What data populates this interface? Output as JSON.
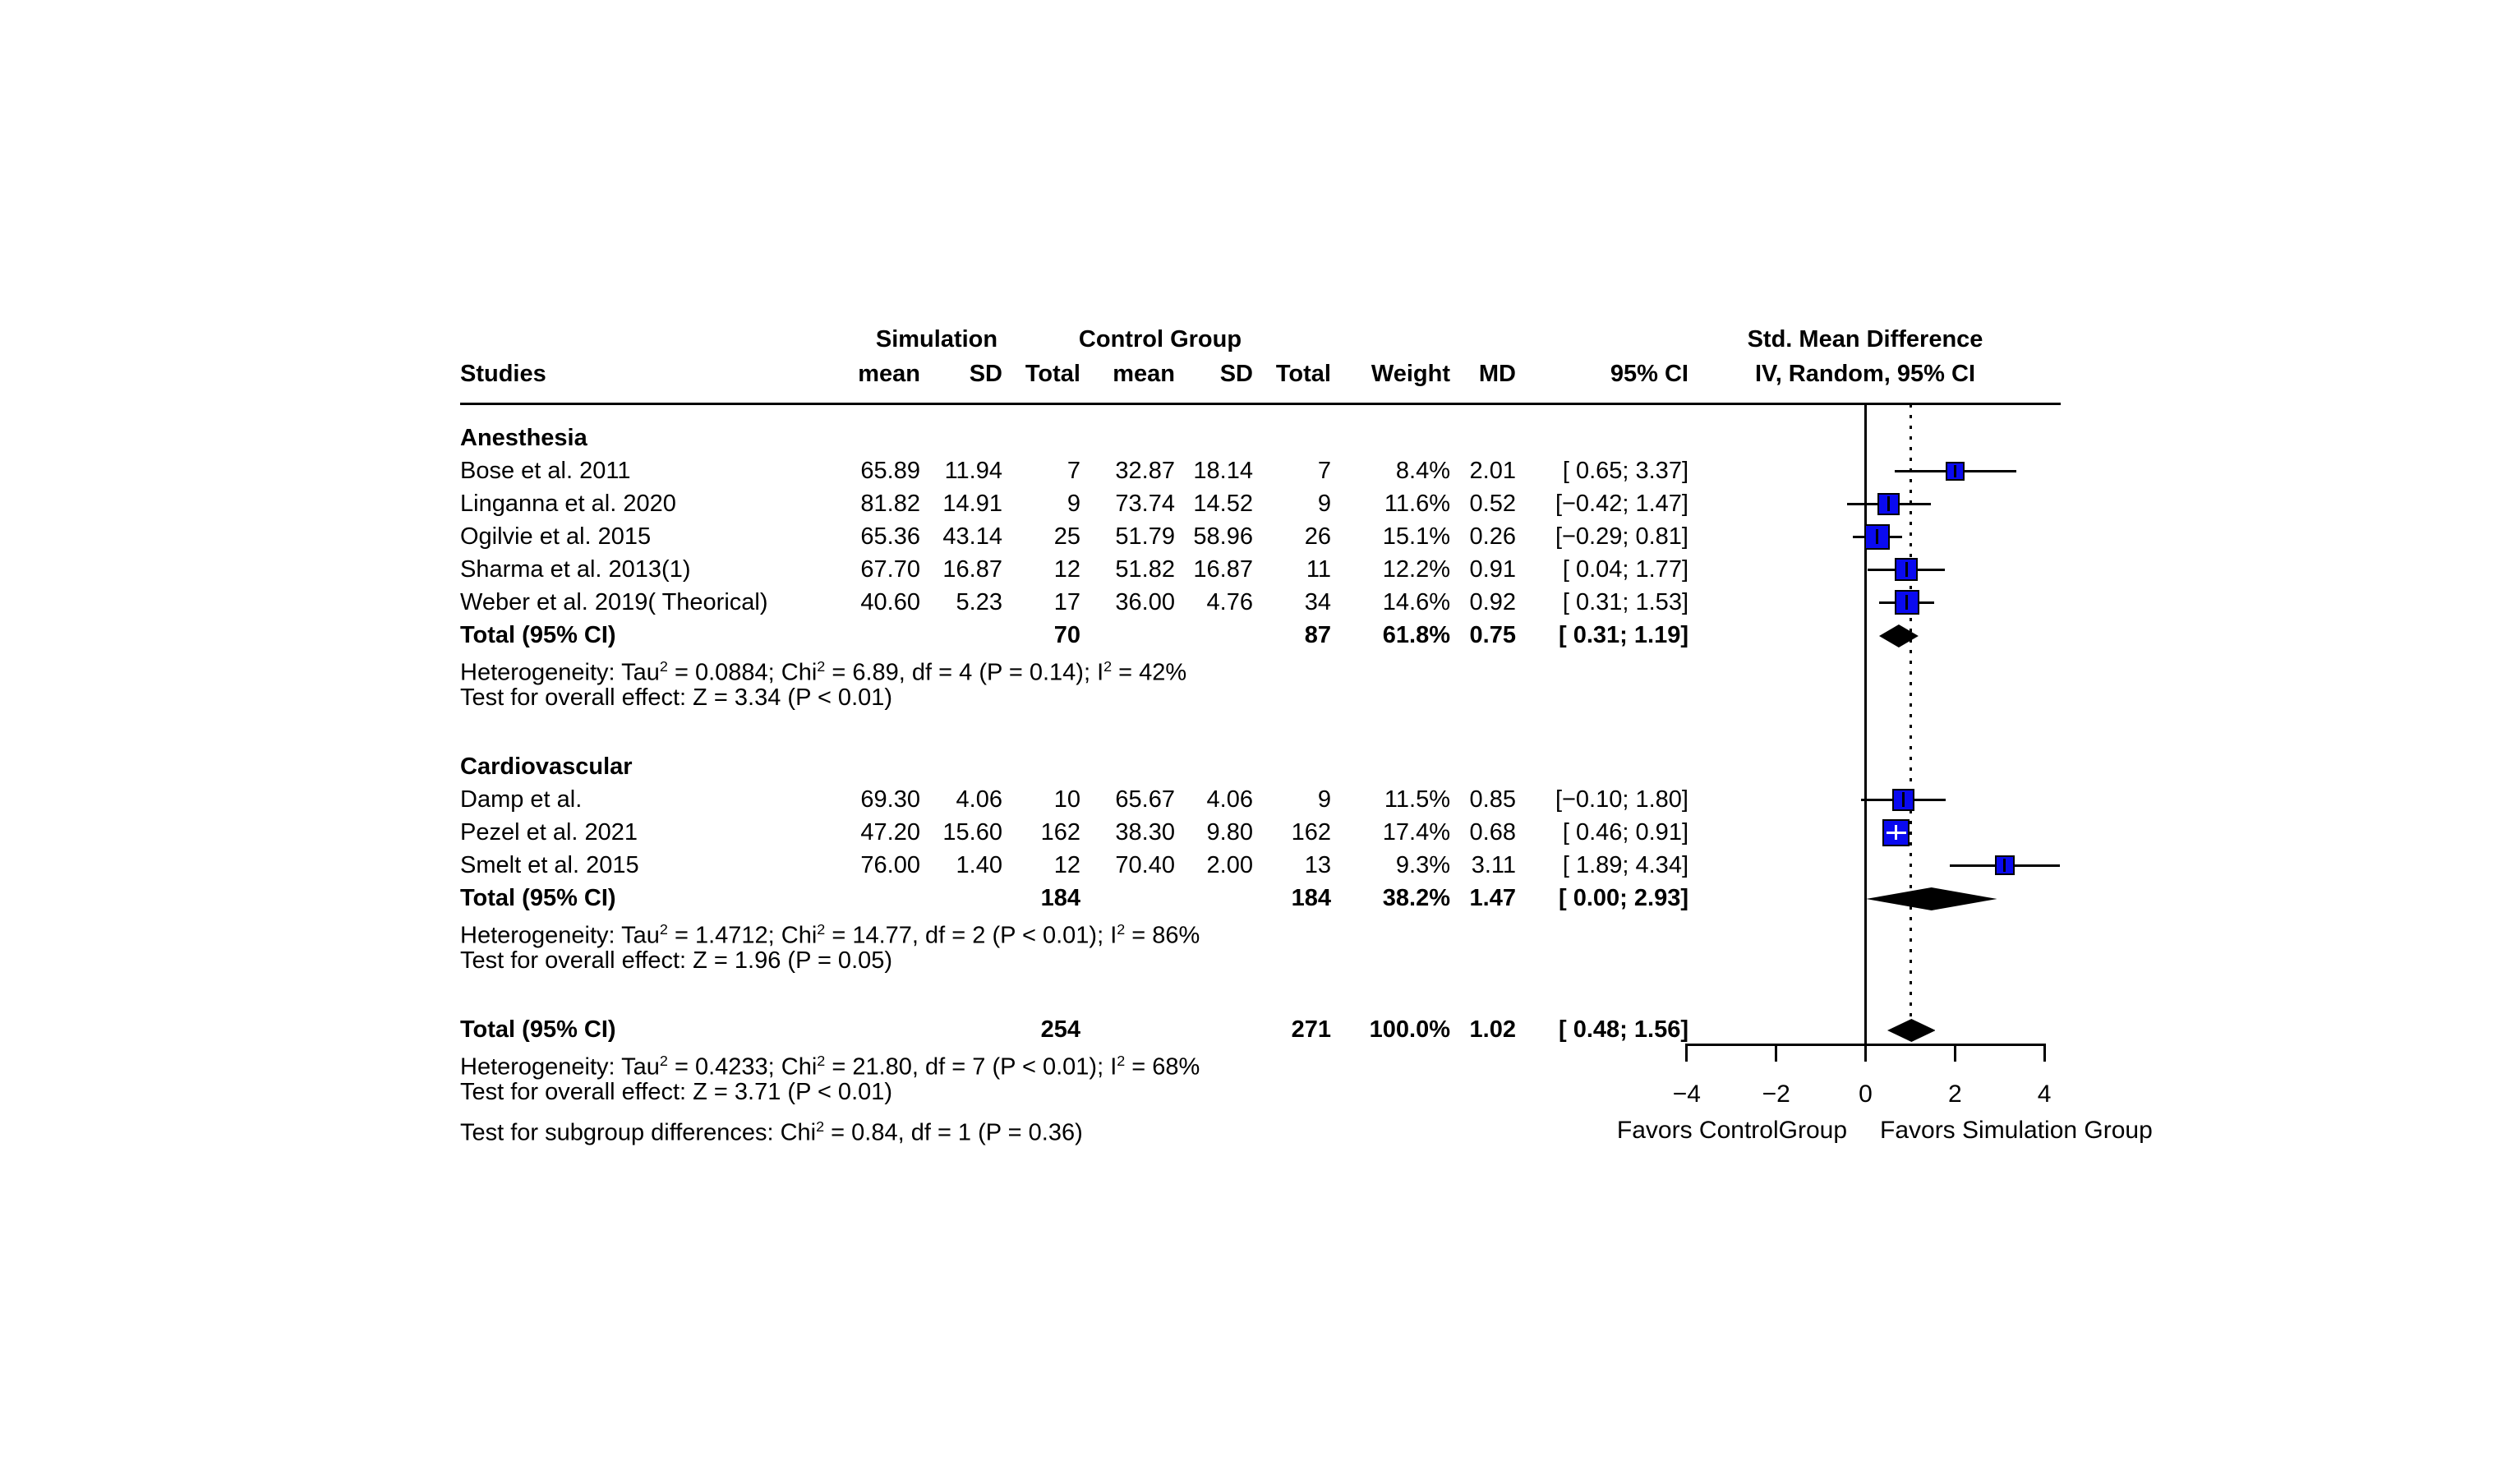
{
  "table": {
    "studies_header": "Studies",
    "group_sim": "Simulation",
    "group_ctrl": "Control Group",
    "columns": {
      "mean": "mean",
      "sd": "SD",
      "total": "Total",
      "mean2": "mean",
      "sd2": "SD",
      "total2": "Total",
      "weight": "Weight",
      "md": "MD",
      "ci": "95% CI"
    },
    "total_label": "Total (95% CI)"
  },
  "effect_col": {
    "line1": "Std. Mean Difference",
    "line2": "IV, Random, 95% CI"
  },
  "colors": {
    "square": "#0a0af0",
    "diamond": "#000000",
    "line": "#000000"
  },
  "chart_data": {
    "type": "forest",
    "x_tick_values": [
      -4,
      -2,
      0,
      2,
      4
    ],
    "x_ticks": [
      "−4",
      "−2",
      "0",
      "2",
      "4"
    ],
    "xlim": [
      -4,
      4
    ],
    "null_line": 0,
    "pooled_line": 1.02,
    "favors_left": "Favors ControlGroup",
    "favors_right": "Favors Simulation Group",
    "groups": [
      {
        "name": "Anesthesia",
        "studies": [
          {
            "name": "Bose et al. 2011",
            "mean": "65.89",
            "sd": "11.94",
            "n": "7",
            "mean2": "32.87",
            "sd2": "18.14",
            "n2": "7",
            "weight": "8.4%",
            "md": "2.01",
            "ci": "[ 0.65; 3.37]",
            "lo": 0.65,
            "hi": 3.37
          },
          {
            "name": "Linganna et al. 2020",
            "mean": "81.82",
            "sd": "14.91",
            "n": "9",
            "mean2": "73.74",
            "sd2": "14.52",
            "n2": "9",
            "weight": "11.6%",
            "md": "0.52",
            "ci": "[−0.42; 1.47]",
            "lo": -0.42,
            "hi": 1.47
          },
          {
            "name": "Ogilvie et al. 2015",
            "mean": "65.36",
            "sd": "43.14",
            "n": "25",
            "mean2": "51.79",
            "sd2": "58.96",
            "n2": "26",
            "weight": "15.1%",
            "md": "0.26",
            "ci": "[−0.29; 0.81]",
            "lo": -0.29,
            "hi": 0.81
          },
          {
            "name": "Sharma et al. 2013(1)",
            "mean": "67.70",
            "sd": "16.87",
            "n": "12",
            "mean2": "51.82",
            "sd2": "16.87",
            "n2": "11",
            "weight": "12.2%",
            "md": "0.91",
            "ci": "[ 0.04; 1.77]",
            "lo": 0.04,
            "hi": 1.77
          },
          {
            "name": "Weber et al. 2019( Theorical)",
            "mean": "40.60",
            "sd": "5.23",
            "n": "17",
            "mean2": "36.00",
            "sd2": "4.76",
            "n2": "34",
            "weight": "14.6%",
            "md": "0.92",
            "ci": "[ 0.31; 1.53]",
            "lo": 0.31,
            "hi": 1.53
          }
        ],
        "total": {
          "n": "70",
          "n2": "87",
          "weight": "61.8%",
          "md": "0.75",
          "ci": "[ 0.31; 1.19]",
          "est": 0.75,
          "lo": 0.31,
          "hi": 1.19
        },
        "heterogeneity": "Heterogeneity: Tau^2 = 0.0884; Chi^2 = 6.89, df = 4 (P = 0.14); I^2 = 42%",
        "overall_effect": "Test for overall effect: Z = 3.34 (P < 0.01)"
      },
      {
        "name": "Cardiovascular",
        "studies": [
          {
            "name": "Damp et al.",
            "mean": "69.30",
            "sd": "4.06",
            "n": "10",
            "mean2": "65.67",
            "sd2": "4.06",
            "n2": "9",
            "weight": "11.5%",
            "md": "0.85",
            "ci": "[−0.10; 1.80]",
            "lo": -0.1,
            "hi": 1.8
          },
          {
            "name": "Pezel et al. 2021",
            "mean": "47.20",
            "sd": "15.60",
            "n": "162",
            "mean2": "38.30",
            "sd2": "9.80",
            "n2": "162",
            "weight": "17.4%",
            "md": "0.68",
            "ci": "[ 0.46; 0.91]",
            "lo": 0.46,
            "hi": 0.91
          },
          {
            "name": "Smelt et al. 2015",
            "mean": "76.00",
            "sd": "1.40",
            "n": "12",
            "mean2": "70.40",
            "sd2": "2.00",
            "n2": "13",
            "weight": "9.3%",
            "md": "3.11",
            "ci": "[ 1.89; 4.34]",
            "lo": 1.89,
            "hi": 4.34
          }
        ],
        "total": {
          "n": "184",
          "n2": "184",
          "weight": "38.2%",
          "md": "1.47",
          "ci": "[ 0.00; 2.93]",
          "est": 1.47,
          "lo": 0.0,
          "hi": 2.93
        },
        "heterogeneity": "Heterogeneity: Tau^2 = 1.4712; Chi^2 = 14.77, df = 2 (P < 0.01); I^2 = 86%",
        "overall_effect": "Test for overall effect: Z = 1.96 (P = 0.05)"
      }
    ],
    "overall": {
      "total": {
        "n": "254",
        "n2": "271",
        "weight": "100.0%",
        "md": "1.02",
        "ci": "[ 0.48; 1.56]",
        "est": 1.02,
        "lo": 0.48,
        "hi": 1.56
      },
      "heterogeneity": "Heterogeneity: Tau^2 = 0.4233; Chi^2 = 21.80, df = 7 (P < 0.01); I^2 = 68%",
      "overall_effect": "Test for overall effect: Z = 3.71 (P < 0.01)",
      "subgroup_diff": "Test for subgroup differences: Chi^2 = 0.84, df = 1 (P = 0.36)"
    }
  }
}
